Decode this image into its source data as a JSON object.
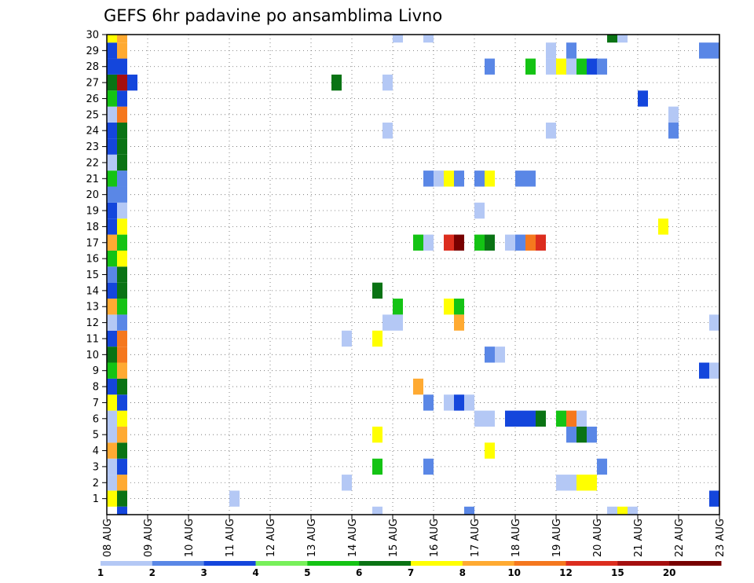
{
  "chart_data": {
    "type": "heatmap",
    "title": "GEFS 6hr padavine po ansamblima Livno",
    "xlabel": "",
    "ylabel": "",
    "x_ticks": [
      "08 AUG",
      "09 AUG",
      "10 AUG",
      "11 AUG",
      "12 AUG",
      "13 AUG",
      "14 AUG",
      "15 AUG",
      "16 AUG",
      "17 AUG",
      "18 AUG",
      "19 AUG",
      "20 AUG",
      "21 AUG",
      "22 AUG",
      "23 AUG"
    ],
    "y_ticks": [
      "1",
      "2",
      "3",
      "4",
      "5",
      "6",
      "7",
      "8",
      "9",
      "10",
      "11",
      "12",
      "13",
      "14",
      "15",
      "16",
      "17",
      "18",
      "19",
      "20",
      "21",
      "22",
      "23",
      "24",
      "25",
      "26",
      "27",
      "28",
      "29",
      "30"
    ],
    "xlim": [
      0,
      60
    ],
    "ylim": [
      0,
      30
    ],
    "grid": true,
    "colorbar": {
      "labels": [
        "1",
        "2",
        "3",
        "4",
        "5",
        "6",
        "7",
        "8",
        "10",
        "12",
        "15",
        "20"
      ],
      "colors": [
        "#b4c8f5",
        "#5a87e6",
        "#1446dc",
        "#78f05a",
        "#14c314",
        "#0a7314",
        "#ffff00",
        "#ffaa32",
        "#f5781e",
        "#dc2d1e",
        "#a50f0f",
        "#780000"
      ]
    },
    "cells": [
      {
        "x": 1,
        "y": 1,
        "v": 7
      },
      {
        "x": 2,
        "y": 1,
        "v": 6
      },
      {
        "x": 1,
        "y": 2,
        "v": 0
      },
      {
        "x": 2,
        "y": 2,
        "v": 8
      },
      {
        "x": 1,
        "y": 3,
        "v": 1
      },
      {
        "x": 2,
        "y": 3,
        "v": 3
      },
      {
        "x": 1,
        "y": 4,
        "v": 8
      },
      {
        "x": 2,
        "y": 4,
        "v": 6
      },
      {
        "x": 1,
        "y": 5,
        "v": 0
      },
      {
        "x": 2,
        "y": 5,
        "v": 8
      },
      {
        "x": 1,
        "y": 6,
        "v": 0
      },
      {
        "x": 2,
        "y": 6,
        "v": 7
      },
      {
        "x": 1,
        "y": 7,
        "v": 7.5
      },
      {
        "x": 2,
        "y": 7,
        "v": 3
      },
      {
        "x": 1,
        "y": 8,
        "v": 3
      },
      {
        "x": 2,
        "y": 8,
        "v": 6
      },
      {
        "x": 1,
        "y": 9,
        "v": 5
      },
      {
        "x": 2,
        "y": 9,
        "v": 8
      },
      {
        "x": 1,
        "y": 10,
        "v": 6
      },
      {
        "x": 2,
        "y": 10,
        "v": 10
      },
      {
        "x": 1,
        "y": 11,
        "v": 3
      },
      {
        "x": 2,
        "y": 11,
        "v": 10
      },
      {
        "x": 1,
        "y": 12,
        "v": 1
      },
      {
        "x": 2,
        "y": 12,
        "v": 2
      },
      {
        "x": 1,
        "y": 13,
        "v": 8
      },
      {
        "x": 2,
        "y": 13,
        "v": 5
      },
      {
        "x": 1,
        "y": 14,
        "v": 3
      },
      {
        "x": 2,
        "y": 14,
        "v": 6
      },
      {
        "x": 1,
        "y": 15,
        "v": 2
      },
      {
        "x": 2,
        "y": 15,
        "v": 6
      },
      {
        "x": 1,
        "y": 16,
        "v": 5
      },
      {
        "x": 2,
        "y": 16,
        "v": 7
      },
      {
        "x": 1,
        "y": 17,
        "v": 8
      },
      {
        "x": 2,
        "y": 17,
        "v": 5
      },
      {
        "x": 1,
        "y": 18,
        "v": 3
      },
      {
        "x": 2,
        "y": 18,
        "v": 7.5
      },
      {
        "x": 1,
        "y": 19,
        "v": 3
      },
      {
        "x": 2,
        "y": 19,
        "v": 1
      },
      {
        "x": 1,
        "y": 20,
        "v": 2
      },
      {
        "x": 2,
        "y": 20,
        "v": 2
      },
      {
        "x": 1,
        "y": 21,
        "v": 5
      },
      {
        "x": 2,
        "y": 21,
        "v": 2
      },
      {
        "x": 1,
        "y": 22,
        "v": 1
      },
      {
        "x": 2,
        "y": 22,
        "v": 6
      },
      {
        "x": 1,
        "y": 23,
        "v": 3
      },
      {
        "x": 2,
        "y": 23,
        "v": 6
      },
      {
        "x": 1,
        "y": 24,
        "v": 3
      },
      {
        "x": 2,
        "y": 24,
        "v": 6
      },
      {
        "x": 1,
        "y": 25,
        "v": 0
      },
      {
        "x": 2,
        "y": 25,
        "v": 10
      },
      {
        "x": 1,
        "y": 26,
        "v": 5
      },
      {
        "x": 2,
        "y": 26,
        "v": 3
      },
      {
        "x": 1,
        "y": 27,
        "v": 6
      },
      {
        "x": 2,
        "y": 27,
        "v": 15
      },
      {
        "x": 3,
        "y": 27,
        "v": 3
      },
      {
        "x": 1,
        "y": 28,
        "v": 3
      },
      {
        "x": 2,
        "y": 28,
        "v": 3
      },
      {
        "x": 1,
        "y": 29,
        "v": 3
      },
      {
        "x": 2,
        "y": 29,
        "v": 8
      },
      {
        "x": 1,
        "y": 30,
        "v": 7
      },
      {
        "x": 2,
        "y": 30,
        "v": 8
      },
      {
        "x": 2,
        "y": 0,
        "v": 3
      },
      {
        "x": 13,
        "y": 1,
        "v": 0
      },
      {
        "x": 60,
        "y": 1,
        "v": 3
      },
      {
        "x": 23,
        "y": 27,
        "v": 6
      },
      {
        "x": 28,
        "y": 27,
        "v": 1
      },
      {
        "x": 28,
        "y": 24,
        "v": 1
      },
      {
        "x": 29,
        "y": 30,
        "v": 1
      },
      {
        "x": 32,
        "y": 30,
        "v": 1
      },
      {
        "x": 50,
        "y": 30,
        "v": 6
      },
      {
        "x": 51,
        "y": 30,
        "v": 1
      },
      {
        "x": 44,
        "y": 29,
        "v": 1
      },
      {
        "x": 46,
        "y": 29,
        "v": 2
      },
      {
        "x": 59,
        "y": 29,
        "v": 2
      },
      {
        "x": 60,
        "y": 29,
        "v": 2
      },
      {
        "x": 38,
        "y": 28,
        "v": 2
      },
      {
        "x": 42,
        "y": 28,
        "v": 5
      },
      {
        "x": 44,
        "y": 28,
        "v": 1
      },
      {
        "x": 45,
        "y": 28,
        "v": 7
      },
      {
        "x": 46,
        "y": 28,
        "v": 1
      },
      {
        "x": 47,
        "y": 28,
        "v": 5
      },
      {
        "x": 48,
        "y": 28,
        "v": 3
      },
      {
        "x": 49,
        "y": 28,
        "v": 2
      },
      {
        "x": 53,
        "y": 26,
        "v": 3
      },
      {
        "x": 56,
        "y": 25,
        "v": 1
      },
      {
        "x": 44,
        "y": 24,
        "v": 1
      },
      {
        "x": 56,
        "y": 24,
        "v": 2
      },
      {
        "x": 32,
        "y": 21,
        "v": 2
      },
      {
        "x": 33,
        "y": 21,
        "v": 1
      },
      {
        "x": 34,
        "y": 21,
        "v": 7
      },
      {
        "x": 35,
        "y": 21,
        "v": 2
      },
      {
        "x": 37,
        "y": 21,
        "v": 2
      },
      {
        "x": 38,
        "y": 21,
        "v": 7
      },
      {
        "x": 41,
        "y": 21,
        "v": 2
      },
      {
        "x": 42,
        "y": 21,
        "v": 2
      },
      {
        "x": 37,
        "y": 19,
        "v": 1
      },
      {
        "x": 55,
        "y": 18,
        "v": 7.5
      },
      {
        "x": 31,
        "y": 17,
        "v": 5
      },
      {
        "x": 32,
        "y": 17,
        "v": 1
      },
      {
        "x": 34,
        "y": 17,
        "v": 12
      },
      {
        "x": 35,
        "y": 17,
        "v": 20
      },
      {
        "x": 37,
        "y": 17,
        "v": 5
      },
      {
        "x": 38,
        "y": 17,
        "v": 6
      },
      {
        "x": 40,
        "y": 17,
        "v": 1
      },
      {
        "x": 41,
        "y": 17,
        "v": 2
      },
      {
        "x": 42,
        "y": 17,
        "v": 10
      },
      {
        "x": 43,
        "y": 17,
        "v": 12
      },
      {
        "x": 27,
        "y": 14,
        "v": 6
      },
      {
        "x": 29,
        "y": 13,
        "v": 5
      },
      {
        "x": 34,
        "y": 13,
        "v": 7
      },
      {
        "x": 35,
        "y": 13,
        "v": 5
      },
      {
        "x": 28,
        "y": 12,
        "v": 1
      },
      {
        "x": 29,
        "y": 12,
        "v": 1
      },
      {
        "x": 35,
        "y": 12,
        "v": 8
      },
      {
        "x": 60,
        "y": 12,
        "v": 1
      },
      {
        "x": 24,
        "y": 11,
        "v": 1
      },
      {
        "x": 27,
        "y": 11,
        "v": 7
      },
      {
        "x": 38,
        "y": 10,
        "v": 2
      },
      {
        "x": 39,
        "y": 10,
        "v": 1
      },
      {
        "x": 59,
        "y": 9,
        "v": 3
      },
      {
        "x": 60,
        "y": 9,
        "v": 1
      },
      {
        "x": 31,
        "y": 8,
        "v": 8
      },
      {
        "x": 32,
        "y": 7,
        "v": 2
      },
      {
        "x": 34,
        "y": 7,
        "v": 1
      },
      {
        "x": 35,
        "y": 7,
        "v": 3
      },
      {
        "x": 36,
        "y": 7,
        "v": 1
      },
      {
        "x": 37,
        "y": 6,
        "v": 1
      },
      {
        "x": 38,
        "y": 6,
        "v": 1
      },
      {
        "x": 40,
        "y": 6,
        "v": 3
      },
      {
        "x": 41,
        "y": 6,
        "v": 3
      },
      {
        "x": 42,
        "y": 6,
        "v": 3
      },
      {
        "x": 43,
        "y": 6,
        "v": 6
      },
      {
        "x": 45,
        "y": 6,
        "v": 5
      },
      {
        "x": 46,
        "y": 6,
        "v": 10
      },
      {
        "x": 47,
        "y": 6,
        "v": 1
      },
      {
        "x": 27,
        "y": 5,
        "v": 7.5
      },
      {
        "x": 46,
        "y": 5,
        "v": 2
      },
      {
        "x": 47,
        "y": 5,
        "v": 6
      },
      {
        "x": 48,
        "y": 5,
        "v": 2
      },
      {
        "x": 38,
        "y": 4,
        "v": 7
      },
      {
        "x": 27,
        "y": 3,
        "v": 5
      },
      {
        "x": 32,
        "y": 3,
        "v": 2
      },
      {
        "x": 49,
        "y": 3,
        "v": 2
      },
      {
        "x": 24,
        "y": 2,
        "v": 1
      },
      {
        "x": 45,
        "y": 2,
        "v": 1
      },
      {
        "x": 46,
        "y": 2,
        "v": 1
      },
      {
        "x": 47,
        "y": 2,
        "v": 7.5
      },
      {
        "x": 48,
        "y": 2,
        "v": 7.5
      },
      {
        "x": 27,
        "y": 0,
        "v": 1
      },
      {
        "x": 36,
        "y": 0,
        "v": 2
      },
      {
        "x": 50,
        "y": 0,
        "v": 1
      },
      {
        "x": 51,
        "y": 0,
        "v": 7
      },
      {
        "x": 52,
        "y": 0,
        "v": 1
      }
    ]
  }
}
